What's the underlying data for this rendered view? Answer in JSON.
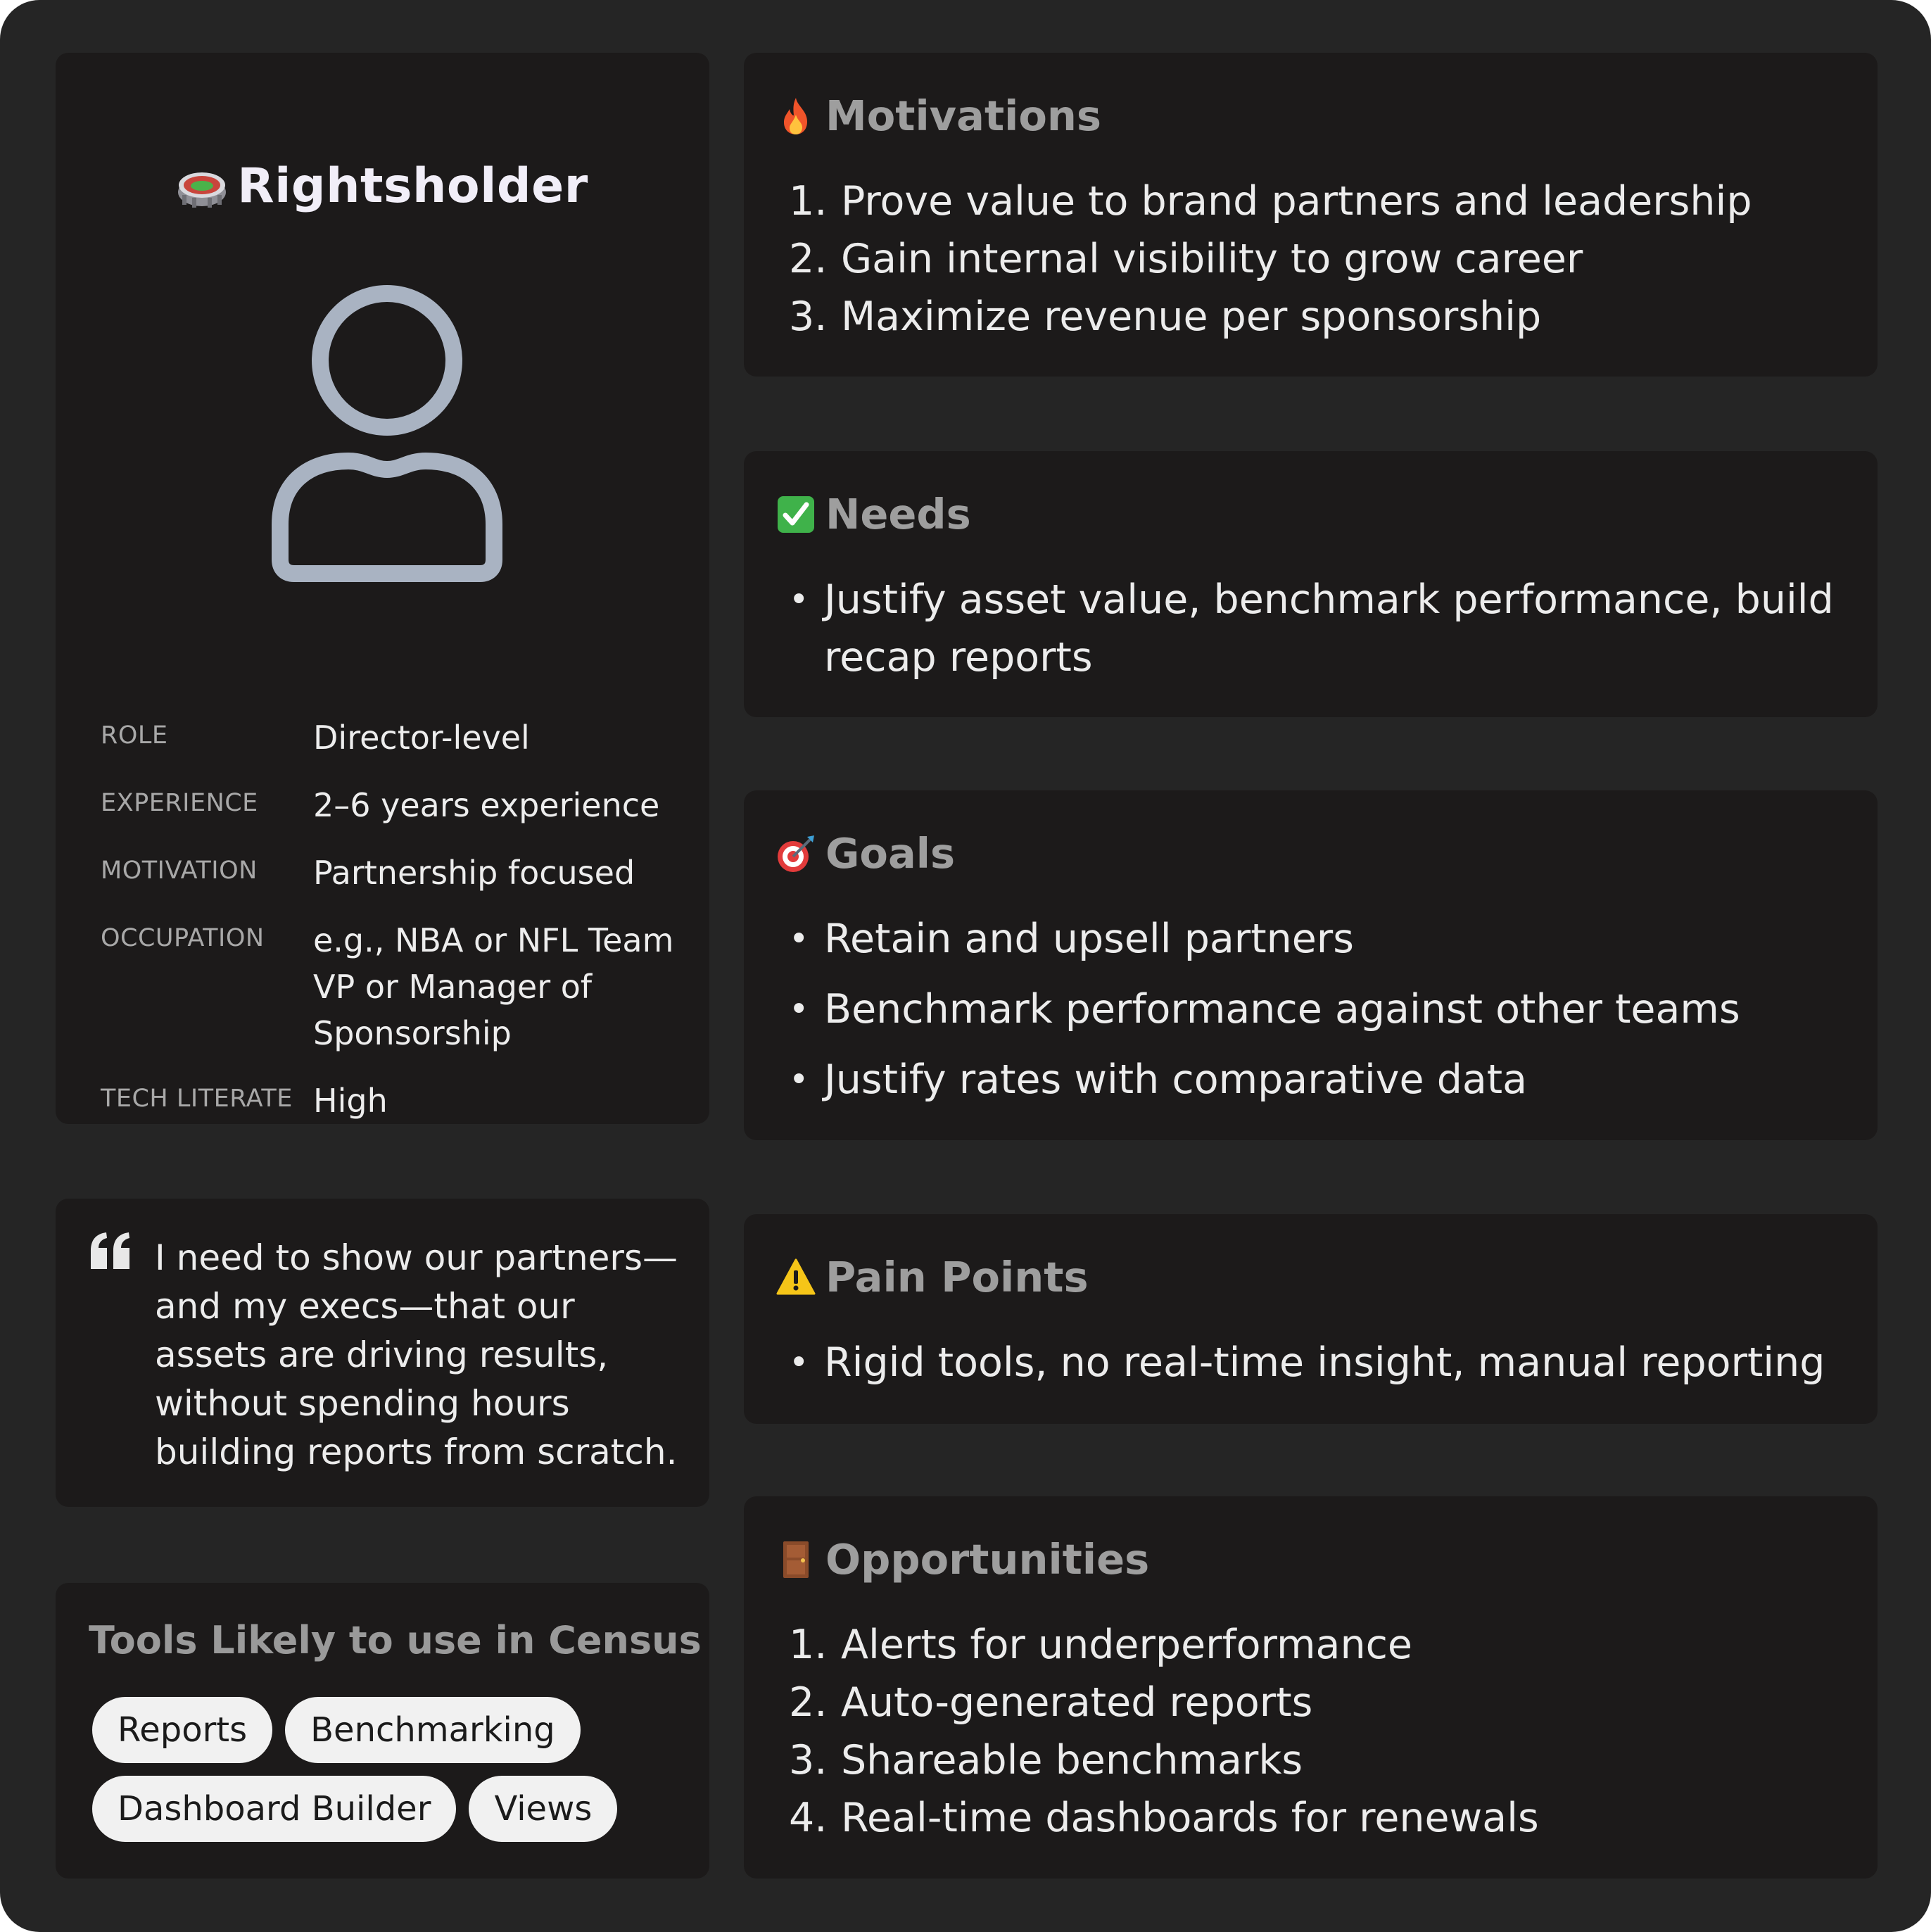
{
  "profile": {
    "title": "Rightsholder",
    "title_icon": "stadium-icon",
    "avatar_icon": "user-avatar-icon",
    "attributes": [
      {
        "key": "ROLE",
        "value": "Director-level"
      },
      {
        "key": "EXPERIENCE",
        "value": "2–6 years experience"
      },
      {
        "key": "MOTIVATION",
        "value": "Partnership focused"
      },
      {
        "key": "OCCUPATION",
        "value": "e.g., NBA or NFL Team VP or Manager of Sponsorship"
      },
      {
        "key": "TECH LITERATE",
        "value": "High"
      }
    ]
  },
  "quote": {
    "icon": "quote-mark-icon",
    "text": "I need to show our partners—and my execs—that our assets are driving results, without spending hours building reports from scratch."
  },
  "tools": {
    "title": "Tools Likely to use in Census",
    "chips": [
      "Reports",
      "Benchmarking",
      "Dashboard Builder",
      "Views"
    ]
  },
  "motivations": {
    "title": "Motivations",
    "icon": "fire-icon",
    "items": [
      {
        "num": "1.",
        "text": "Prove value to brand partners and leadership"
      },
      {
        "num": "2.",
        "text": "Gain internal visibility to grow career"
      },
      {
        "num": "3.",
        "text": "Maximize revenue per sponsorship"
      }
    ]
  },
  "needs": {
    "title": "Needs",
    "icon": "check-box-icon",
    "items": [
      "Justify asset value, benchmark performance, build recap reports"
    ]
  },
  "goals": {
    "title": "Goals",
    "icon": "target-dart-icon",
    "items": [
      "Retain and upsell partners",
      "Benchmark performance against other teams",
      "Justify rates with comparative data"
    ]
  },
  "pain_points": {
    "title": "Pain Points",
    "icon": "warning-icon",
    "items": [
      "Rigid tools, no real-time insight, manual reporting"
    ]
  },
  "opportunities": {
    "title": "Opportunities",
    "icon": "door-icon",
    "items": [
      {
        "num": "1.",
        "text": "Alerts for underperformance"
      },
      {
        "num": "2.",
        "text": "Auto-generated reports"
      },
      {
        "num": "3.",
        "text": "Shareable benchmarks"
      },
      {
        "num": "4.",
        "text": "Real-time dashboards for renewals"
      }
    ]
  },
  "colors": {
    "frame_bg": "#252525",
    "card_bg": "#1c1a1a",
    "heading_gray": "#9e9e9e",
    "body_text": "#ececec",
    "chip_bg": "#f1f1f1",
    "avatar_stroke": "#a9b3c2"
  }
}
